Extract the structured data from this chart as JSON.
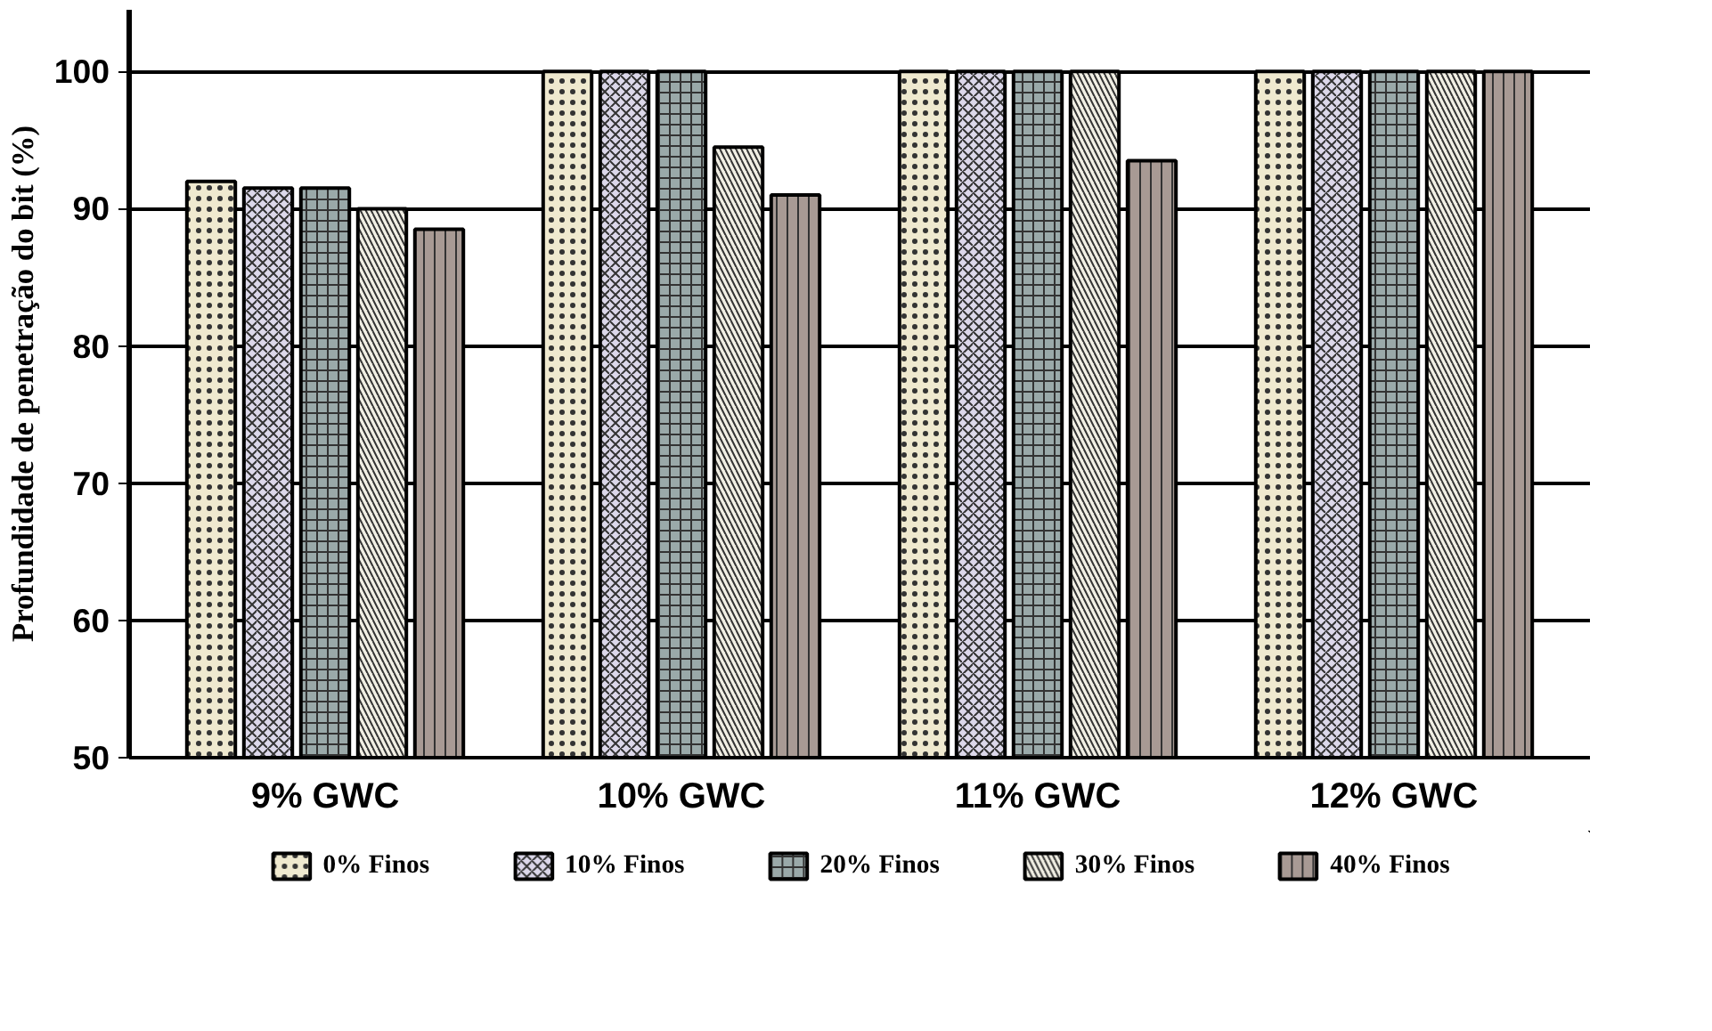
{
  "chart_data": {
    "type": "bar",
    "ylabel": "Profundidade de penetração do bit (%)",
    "categories": [
      "9% GWC",
      "10% GWC",
      "11% GWC",
      "12% GWC"
    ],
    "series": [
      {
        "name": "0% Finos",
        "color": "#efe9cf",
        "values": [
          92,
          100,
          100,
          100
        ]
      },
      {
        "name": "10% Finos",
        "color": "#dcd8ea",
        "values": [
          91.5,
          100,
          100,
          100
        ]
      },
      {
        "name": "20% Finos",
        "color": "#9aa9a9",
        "values": [
          91.5,
          100,
          100,
          100
        ]
      },
      {
        "name": "30% Finos",
        "color": "#f1efe4",
        "values": [
          90,
          94.5,
          100,
          100
        ]
      },
      {
        "name": "40% Finos",
        "color": "#a89a94",
        "values": [
          88.5,
          91,
          93.5,
          100
        ]
      }
    ],
    "ylim": [
      50,
      104.5
    ],
    "yticks": [
      50,
      60,
      70,
      80,
      90,
      100
    ],
    "grid": "y",
    "legend": "bottom"
  }
}
